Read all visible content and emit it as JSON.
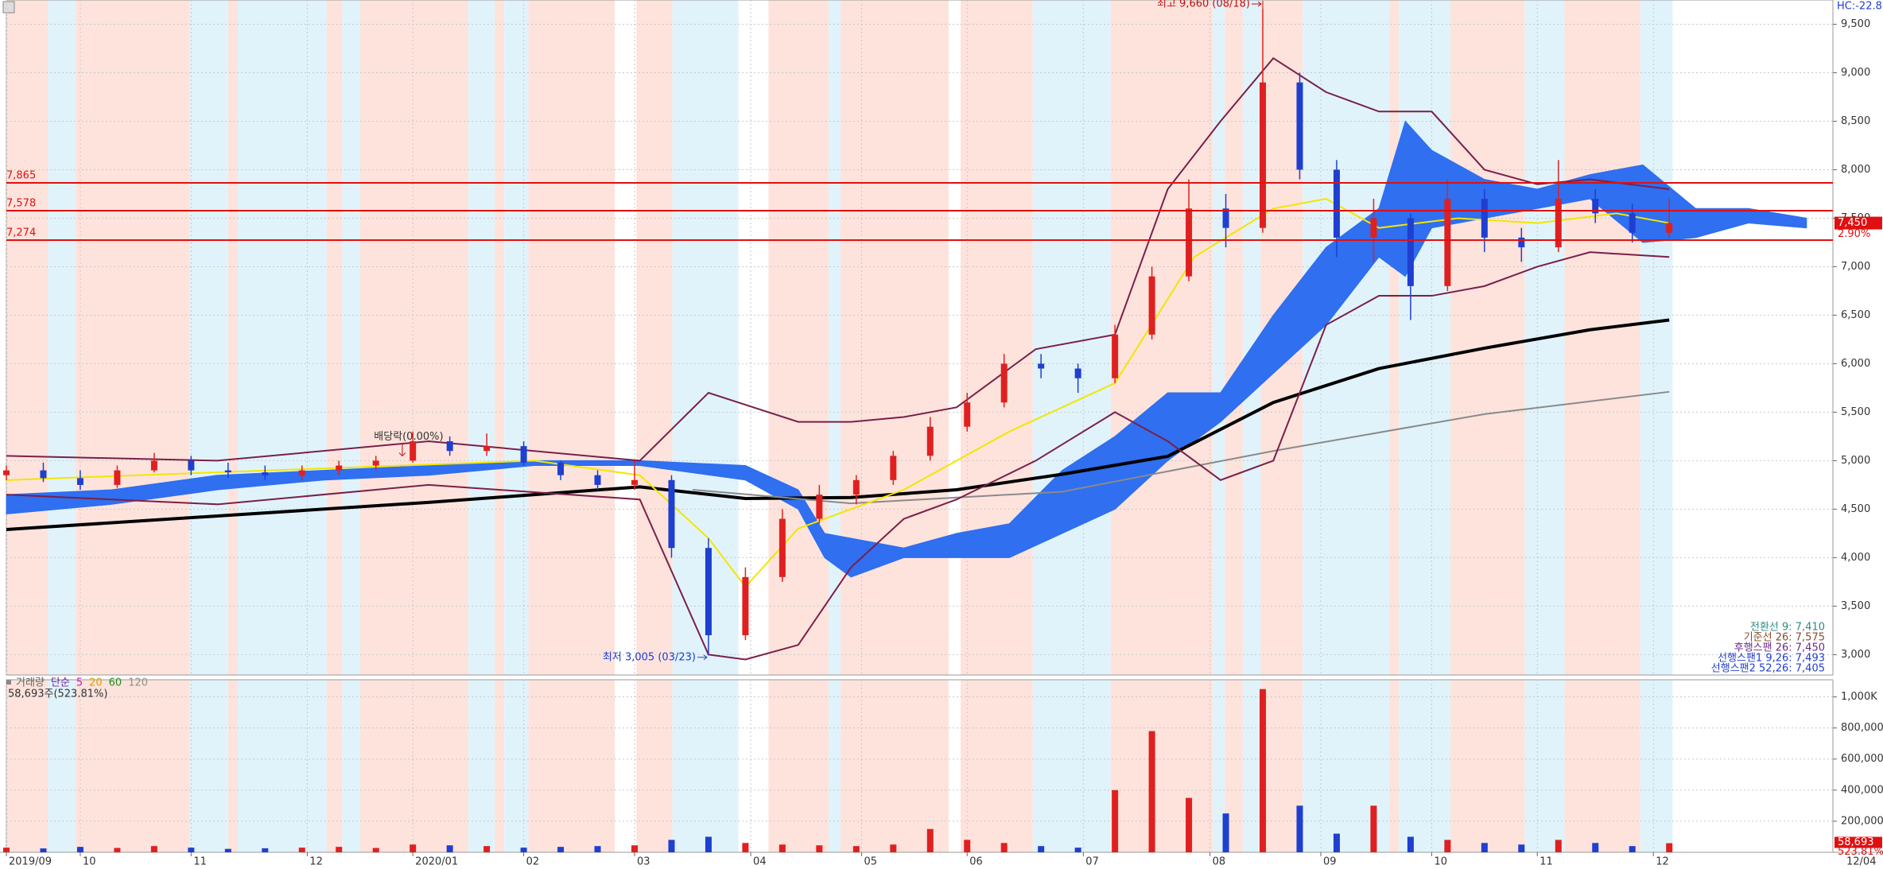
{
  "corner_label": "HC:-22.8",
  "chart_data": [
    {
      "type": "candlestick",
      "x": [
        0,
        7,
        14,
        21,
        28,
        35,
        42,
        49,
        56,
        63,
        70,
        77,
        84,
        91,
        98,
        105,
        112,
        119,
        126,
        133,
        140,
        147,
        154,
        161,
        168,
        175,
        182,
        189,
        196,
        203,
        210,
        217,
        224,
        231,
        238,
        245,
        252,
        259,
        266,
        273,
        280,
        287,
        294,
        301,
        308,
        315
      ],
      "open": [
        4850,
        4900,
        4820,
        4750,
        4900,
        5000,
        4900,
        4880,
        4850,
        4900,
        4950,
        5000,
        5200,
        5100,
        5150,
        4980,
        4850,
        4750,
        4800,
        4100,
        3200,
        3800,
        4400,
        4650,
        4800,
        5050,
        5350,
        5600,
        6000,
        5950,
        5850,
        6300,
        6900,
        7600,
        7400,
        8900,
        8000,
        7300,
        7500,
        6800,
        7700,
        7300,
        7200,
        7700,
        7550,
        7350
      ],
      "high": [
        4950,
        4980,
        4900,
        4950,
        5080,
        5050,
        4980,
        4950,
        4950,
        5000,
        5050,
        5300,
        5250,
        5280,
        5200,
        5000,
        4900,
        5000,
        4850,
        4200,
        3900,
        4500,
        4750,
        4850,
        5100,
        5450,
        5700,
        6100,
        6100,
        6000,
        6400,
        7000,
        7900,
        7750,
        9660,
        9000,
        8100,
        7700,
        7550,
        7900,
        7800,
        7400,
        8100,
        7800,
        7650,
        7700
      ],
      "low": [
        4800,
        4780,
        4700,
        4720,
        4880,
        4850,
        4820,
        4800,
        4800,
        4850,
        4900,
        4980,
        5050,
        5050,
        4950,
        4800,
        4700,
        4700,
        4000,
        3005,
        3150,
        3750,
        4350,
        4550,
        4750,
        5000,
        5300,
        5550,
        5850,
        5700,
        5800,
        6250,
        6850,
        7200,
        7350,
        7900,
        7100,
        7050,
        6450,
        6750,
        7150,
        7050,
        7150,
        7450,
        7250,
        7300
      ],
      "close": [
        4900,
        4820,
        4750,
        4900,
        5000,
        4900,
        4880,
        4850,
        4900,
        4950,
        5000,
        5200,
        5100,
        5150,
        4980,
        4850,
        4750,
        4800,
        4100,
        3200,
        3800,
        4400,
        4650,
        4800,
        5050,
        5350,
        5600,
        6000,
        5950,
        5850,
        6300,
        6900,
        7600,
        7400,
        8900,
        8000,
        7300,
        7500,
        6800,
        7700,
        7300,
        7200,
        7700,
        7550,
        7350,
        7450
      ],
      "up_color": "#e02020",
      "down_color": "#1f3fd0",
      "xlim": [
        0,
        346
      ],
      "ylim": [
        2790,
        9750
      ],
      "yticks": [
        {
          "value": 9500,
          "label": "9,500"
        },
        {
          "value": 9000,
          "label": "9,000"
        },
        {
          "value": 8500,
          "label": "8,500"
        },
        {
          "value": 8000,
          "label": "8,000"
        },
        {
          "value": 7500,
          "label": "7,500"
        },
        {
          "value": 7000,
          "label": "7,000"
        },
        {
          "value": 6500,
          "label": "6,500"
        },
        {
          "value": 6000,
          "label": "6,000"
        },
        {
          "value": 5500,
          "label": "5,500"
        },
        {
          "value": 5000,
          "label": "5,000"
        },
        {
          "value": 4500,
          "label": "4,500"
        },
        {
          "value": 4000,
          "label": "4,000"
        },
        {
          "value": 3500,
          "label": "3,500"
        },
        {
          "value": 3000,
          "label": "3,000"
        }
      ],
      "cloud": {
        "color": "#2f6ff0",
        "x": [
          0,
          20,
          40,
          60,
          80,
          100,
          120,
          140,
          150,
          155,
          160,
          170,
          180,
          190,
          200,
          210,
          220,
          230,
          240,
          250,
          260,
          265,
          270,
          280,
          290,
          300,
          310,
          320,
          330,
          341
        ],
        "upper": [
          4650,
          4700,
          4850,
          4900,
          4950,
          5000,
          5000,
          4950,
          4700,
          4250,
          4200,
          4100,
          4250,
          4350,
          4900,
          5250,
          5700,
          5700,
          6500,
          7200,
          7600,
          8500,
          8200,
          7900,
          7800,
          7950,
          8050,
          7600,
          7600,
          7500
        ],
        "lower": [
          4450,
          4550,
          4700,
          4800,
          4850,
          4950,
          4950,
          4800,
          4500,
          4000,
          3800,
          4000,
          4000,
          4000,
          4250,
          4500,
          5000,
          5400,
          5900,
          6400,
          7100,
          6900,
          7400,
          7500,
          7600,
          7700,
          7250,
          7300,
          7450,
          7400
        ]
      },
      "lines": [
        {
          "color": "#000000",
          "width": 4,
          "x": [
            0,
            40,
            80,
            100,
            120,
            140,
            160,
            180,
            200,
            220,
            240,
            260,
            280,
            300,
            315
          ],
          "values": [
            4290,
            4430,
            4570,
            4650,
            4730,
            4610,
            4620,
            4700,
            4860,
            5045,
            5600,
            5950,
            6160,
            6350,
            6450
          ]
        },
        {
          "color": "#8a8a8a",
          "width": 2,
          "x": [
            130,
            160,
            200,
            240,
            280,
            315
          ],
          "values": [
            4700,
            4560,
            4680,
            5100,
            5480,
            5710
          ]
        },
        {
          "color": "#f2e600",
          "width": 2,
          "x": [
            0,
            50,
            100,
            120,
            133,
            140,
            150,
            170,
            190,
            210,
            225,
            240,
            250,
            260,
            275,
            290,
            305,
            315
          ],
          "values": [
            4800,
            4900,
            5000,
            4850,
            4200,
            3700,
            4300,
            4700,
            5300,
            5800,
            7100,
            7600,
            7700,
            7400,
            7500,
            7450,
            7550,
            7450
          ]
        },
        {
          "color": "#7a1f4a",
          "width": 2,
          "x": [
            0,
            40,
            80,
            120,
            133,
            150,
            160,
            170,
            180,
            195,
            210,
            220,
            230,
            240,
            250,
            260,
            270,
            280,
            290,
            300,
            315
          ],
          "values": [
            5050,
            5000,
            5200,
            5000,
            5700,
            5400,
            5400,
            5450,
            5550,
            6150,
            6300,
            7800,
            8500,
            9150,
            8800,
            8600,
            8600,
            8000,
            7850,
            7900,
            7800
          ]
        },
        {
          "color": "#7a1f4a",
          "width": 2,
          "x": [
            0,
            40,
            80,
            120,
            133,
            140,
            150,
            160,
            170,
            180,
            195,
            210,
            220,
            230,
            240,
            250,
            260,
            270,
            280,
            290,
            300,
            315
          ],
          "values": [
            4650,
            4550,
            4750,
            4600,
            3000,
            2950,
            3100,
            3900,
            4400,
            4600,
            5000,
            5500,
            5200,
            4800,
            5000,
            6400,
            6700,
            6700,
            6800,
            7000,
            7150,
            7100
          ]
        }
      ],
      "hlines": [
        {
          "value": 7865,
          "label": "7,865"
        },
        {
          "value": 7578,
          "label": "7,578"
        },
        {
          "value": 7274,
          "label": "7,274"
        }
      ],
      "hline_color": "#e01010",
      "annotations": [
        {
          "text": "최고 9,660 (08/18)",
          "x": 238,
          "value": 9660
        },
        {
          "text": "최저 3,005 (03/23)",
          "x": 133,
          "value": 3005
        },
        {
          "text": "배당락(0.00%)",
          "x": 75,
          "value": 5000
        }
      ],
      "current_price": {
        "value": 7450,
        "label": "7,450"
      },
      "change": "2.90%",
      "legend": [
        "전환선 9: 7,410",
        "기준선 26: 7,575",
        "후행스팬 26: 7,450",
        "선행스팬1 9,26: 7,493",
        "선행스팬2 52,26: 7,405"
      ]
    },
    {
      "type": "bar",
      "x": [
        0,
        7,
        14,
        21,
        28,
        35,
        42,
        49,
        56,
        63,
        70,
        77,
        84,
        91,
        98,
        105,
        112,
        119,
        126,
        133,
        140,
        147,
        154,
        161,
        168,
        175,
        182,
        189,
        196,
        203,
        210,
        217,
        224,
        231,
        238,
        245,
        252,
        259,
        266,
        273,
        280,
        287,
        294,
        301,
        308,
        315
      ],
      "values": [
        30000,
        25000,
        35000,
        28000,
        40000,
        30000,
        22000,
        26000,
        30000,
        35000,
        28000,
        50000,
        45000,
        40000,
        30000,
        35000,
        40000,
        45000,
        80000,
        100000,
        60000,
        50000,
        45000,
        40000,
        50000,
        150000,
        80000,
        60000,
        40000,
        30000,
        400000,
        780000,
        350000,
        250000,
        1050000,
        300000,
        120000,
        300000,
        100000,
        80000,
        60000,
        50000,
        80000,
        60000,
        40000,
        58693
      ],
      "xlim": [
        0,
        346
      ],
      "ylim": [
        0,
        1110000
      ],
      "yticks": [
        {
          "value": 1000000,
          "label": "1,000K"
        },
        {
          "value": 800000,
          "label": "800,000"
        },
        {
          "value": 600000,
          "label": "600,000"
        },
        {
          "value": 400000,
          "label": "400,000"
        },
        {
          "value": 200000,
          "label": "200,000"
        }
      ],
      "xticks": [
        {
          "value": 0,
          "label": "2019/09"
        },
        {
          "value": 14,
          "label": "10"
        },
        {
          "value": 35,
          "label": "11"
        },
        {
          "value": 57,
          "label": "12"
        },
        {
          "value": 77,
          "label": "2020/01"
        },
        {
          "value": 98,
          "label": "02"
        },
        {
          "value": 119,
          "label": "03"
        },
        {
          "value": 141,
          "label": "04"
        },
        {
          "value": 162,
          "label": "05"
        },
        {
          "value": 182,
          "label": "06"
        },
        {
          "value": 204,
          "label": "07"
        },
        {
          "value": 228,
          "label": "08"
        },
        {
          "value": 249,
          "label": "09"
        },
        {
          "value": 270,
          "label": "10"
        },
        {
          "value": 290,
          "label": "11"
        },
        {
          "value": 312,
          "label": "12"
        }
      ],
      "cursor_date": "12/04",
      "legend": {
        "title": "거래량",
        "kind": "단순",
        "periods": [
          {
            "name": "5",
            "color": "#c020c0"
          },
          {
            "name": "20",
            "color": "#e0a000"
          },
          {
            "name": "60",
            "color": "#209020"
          },
          {
            "name": "120",
            "color": "#909090"
          }
        ]
      },
      "subtitle": "58,693주(523.81%)",
      "tag_value": "58,693",
      "tag_ratio": "523.81%"
    }
  ]
}
